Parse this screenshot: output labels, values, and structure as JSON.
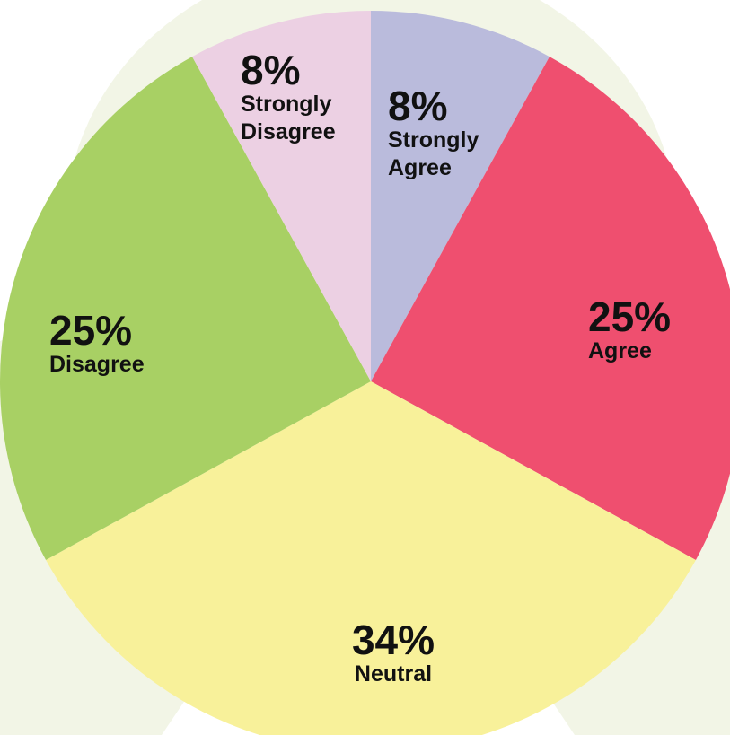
{
  "chart_data": {
    "type": "pie",
    "categories": [
      "Strongly Agree",
      "Agree",
      "Neutral",
      "Disagree",
      "Strongly Disagree"
    ],
    "values": [
      8,
      25,
      34,
      25,
      8
    ],
    "value_labels": [
      "8%",
      "25%",
      "34%",
      "25%",
      "8%"
    ],
    "colors": [
      "#babbdc",
      "#ef4f6f",
      "#f8f19a",
      "#a8d064",
      "#ecd0e3"
    ]
  }
}
